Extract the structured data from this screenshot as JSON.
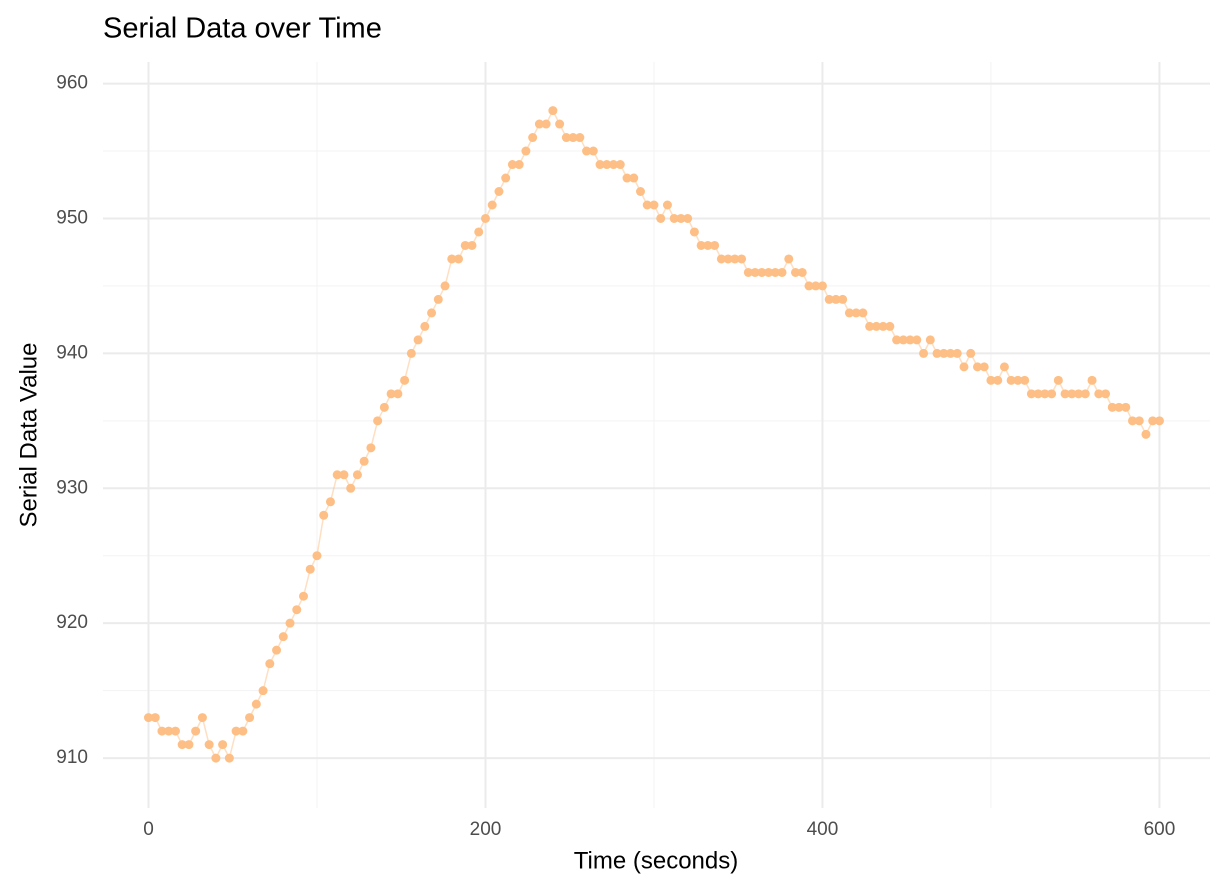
{
  "chart_data": {
    "type": "line",
    "title": "Serial Data over Time",
    "x_label": "Time (seconds)",
    "y_label": "Serial Data Value",
    "color": "#fdbf85",
    "markers": true,
    "grid": true,
    "xlim": [
      -27,
      630
    ],
    "ylim": [
      906.3,
      961.6
    ],
    "xticks": [
      0,
      200,
      400,
      600
    ],
    "yticks": [
      910,
      920,
      930,
      940,
      950,
      960
    ],
    "xminorticks": [
      100,
      300,
      500
    ],
    "yminorticks": [
      915,
      925,
      935,
      945,
      955
    ],
    "x": [
      0,
      4,
      8,
      12,
      16,
      20,
      24,
      28,
      32,
      36,
      40,
      44,
      48,
      52,
      56,
      60,
      64,
      68,
      72,
      76,
      80,
      84,
      88,
      92,
      96,
      100,
      104,
      108,
      112,
      116,
      120,
      124,
      128,
      132,
      136,
      140,
      144,
      148,
      152,
      156,
      160,
      164,
      168,
      172,
      176,
      180,
      184,
      188,
      192,
      196,
      200,
      204,
      208,
      212,
      216,
      220,
      224,
      228,
      232,
      236,
      240,
      244,
      248,
      252,
      256,
      260,
      264,
      268,
      272,
      276,
      280,
      284,
      288,
      292,
      296,
      300,
      304,
      308,
      312,
      316,
      320,
      324,
      328,
      332,
      336,
      340,
      344,
      348,
      352,
      356,
      360,
      364,
      368,
      372,
      376,
      380,
      384,
      388,
      392,
      396,
      400,
      404,
      408,
      412,
      416,
      420,
      424,
      428,
      432,
      436,
      440,
      444,
      448,
      452,
      456,
      460,
      464,
      468,
      472,
      476,
      480,
      484,
      488,
      492,
      496,
      500,
      504,
      508,
      512,
      516,
      520,
      524,
      528,
      532,
      536,
      540,
      544,
      548,
      552,
      556,
      560,
      564,
      568,
      572,
      576,
      580,
      584,
      588,
      592,
      596,
      600
    ],
    "values": [
      913,
      913,
      912,
      912,
      912,
      911,
      911,
      912,
      913,
      911,
      910,
      911,
      910,
      912,
      912,
      913,
      914,
      915,
      917,
      918,
      919,
      920,
      921,
      922,
      924,
      925,
      928,
      929,
      931,
      931,
      930,
      931,
      932,
      933,
      935,
      936,
      937,
      937,
      938,
      940,
      941,
      942,
      943,
      944,
      945,
      947,
      947,
      948,
      948,
      949,
      950,
      951,
      952,
      953,
      954,
      954,
      955,
      956,
      957,
      957,
      958,
      957,
      956,
      956,
      956,
      955,
      955,
      954,
      954,
      954,
      954,
      953,
      953,
      952,
      951,
      951,
      950,
      951,
      950,
      950,
      950,
      949,
      948,
      948,
      948,
      947,
      947,
      947,
      947,
      946,
      946,
      946,
      946,
      946,
      946,
      947,
      946,
      946,
      945,
      945,
      945,
      944,
      944,
      944,
      943,
      943,
      943,
      942,
      942,
      942,
      942,
      941,
      941,
      941,
      941,
      940,
      941,
      940,
      940,
      940,
      940,
      939,
      940,
      939,
      939,
      938,
      938,
      939,
      938,
      938,
      938,
      937,
      937,
      937,
      937,
      938,
      937,
      937,
      937,
      937,
      938,
      937,
      937,
      936,
      936,
      936,
      935,
      935,
      934,
      935,
      935
    ]
  }
}
